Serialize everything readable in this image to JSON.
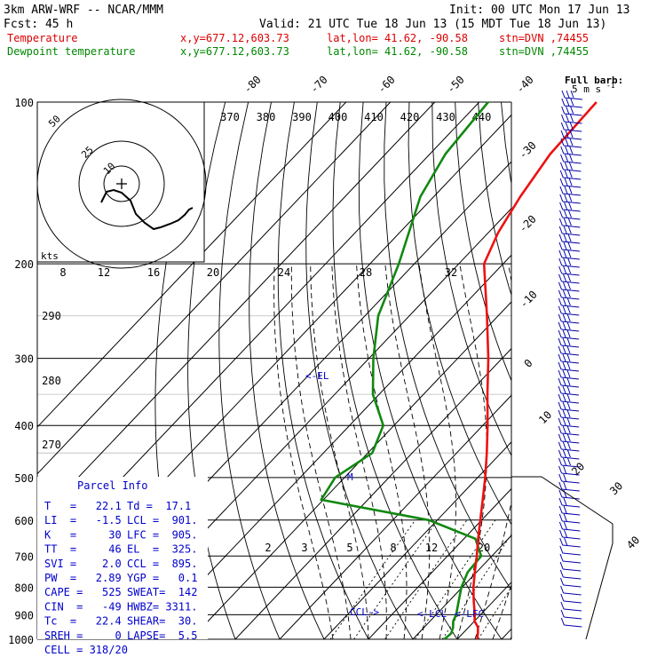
{
  "header": {
    "model": "3km ARW-WRF -- NCAR/MMM",
    "init": "Init: 00 UTC Mon 17 Jun 13",
    "fcst": "Fcst:   45 h",
    "valid": "Valid: 21 UTC Tue 18 Jun 13 (15 MDT Tue 18 Jun 13)",
    "temp_label": "Temperature",
    "dew_label": "Dewpoint temperature",
    "xy": "x,y=677.12,603.73",
    "latlon": "lat,lon= 41.62, -90.58",
    "stn": "stn=DVN ,74455"
  },
  "colors": {
    "temperature": "#ee1111",
    "dewpoint": "#118811",
    "barbs": "#0000aa",
    "header_temp": "#dd0000",
    "header_dew": "#008800"
  },
  "barb_legend": [
    "Full barb:",
    "5 m s",
    "-1"
  ],
  "hodograph": {
    "ring_labels": [
      "50",
      "25",
      "10"
    ],
    "units": "kts",
    "trace_description_note": ""
  },
  "parcel": {
    "title": "Parcel Info",
    "rows": [
      [
        "T   =   22.1",
        "Td =  17.1"
      ],
      [
        "LI  =   -1.5",
        "LCL =  901."
      ],
      [
        "K   =     30",
        "LFC =  905."
      ],
      [
        "TT  =     46",
        "EL  =  325."
      ],
      [
        "SVI =    2.0",
        "CCL =  895."
      ],
      [
        "PW  =   2.89",
        "YGP =   0.1"
      ],
      [
        "CAPE =   525",
        "SWEAT=  142"
      ],
      [
        "CIN  =   -49",
        "HWBZ= 3311."
      ],
      [
        "Tc  =   22.4",
        "SHEAR=  30."
      ],
      [
        "SREH =     0",
        "LAPSE=  5.5"
      ],
      [
        "CELL = 318/20",
        ""
      ]
    ]
  },
  "annotations": {
    "el": "<-EL",
    "m": "M",
    "ccl": "CCL->",
    "lcl": "<-LCL",
    "lfc": "<-LFC"
  },
  "chart_data": {
    "type": "line",
    "title": "",
    "xlabel": "",
    "ylabel": "",
    "pressure_levels": [
      100,
      200,
      300,
      400,
      500,
      600,
      700,
      800,
      900,
      1000
    ],
    "isotherm_labels_top": [
      "-80",
      "-70",
      "-60",
      "-50",
      "-40"
    ],
    "isotherm_labels_right": [
      "-30",
      "-20",
      "-10",
      "0",
      "10",
      "20",
      "30",
      "40"
    ],
    "theta_labels": [
      "370",
      "380",
      "390",
      "400",
      "410",
      "420",
      "430",
      "440"
    ],
    "theta_e_labels_left": [
      "290",
      "280",
      "270"
    ],
    "mixing_ratio_labels_upper": [
      "8",
      "12",
      "16",
      "20",
      "24",
      "28",
      "32"
    ],
    "mixing_ratio_labels_lower": [
      "2",
      "3",
      "5",
      "8",
      "12",
      "20"
    ],
    "series": [
      {
        "name": "Temperature",
        "points": [
          [
            1000,
            24.5
          ],
          [
            975,
            23.4
          ],
          [
            950,
            22.1
          ],
          [
            925,
            20.0
          ],
          [
            900,
            18.7
          ],
          [
            850,
            15.6
          ],
          [
            800,
            12.5
          ],
          [
            750,
            9.6
          ],
          [
            700,
            6.6
          ],
          [
            650,
            3.2
          ],
          [
            600,
            -0.3
          ],
          [
            550,
            -4.1
          ],
          [
            500,
            -8.3
          ],
          [
            450,
            -13.2
          ],
          [
            400,
            -18.9
          ],
          [
            350,
            -25.6
          ],
          [
            300,
            -33.1
          ],
          [
            250,
            -42.5
          ],
          [
            200,
            -54.3
          ],
          [
            175,
            -57.8
          ],
          [
            150,
            -60.5
          ],
          [
            125,
            -62.9
          ],
          [
            100,
            -63.6
          ]
        ]
      },
      {
        "name": "Dewpoint temperature",
        "points": [
          [
            1000,
            17.1
          ],
          [
            975,
            17.4
          ],
          [
            950,
            16.5
          ],
          [
            925,
            15.2
          ],
          [
            900,
            14.5
          ],
          [
            850,
            12.2
          ],
          [
            800,
            9.8
          ],
          [
            750,
            8.0
          ],
          [
            700,
            7.6
          ],
          [
            650,
            2.6
          ],
          [
            600,
            -11.9
          ],
          [
            550,
            -40.5
          ],
          [
            500,
            -42.1
          ],
          [
            450,
            -39.0
          ],
          [
            400,
            -42.4
          ],
          [
            350,
            -51.4
          ],
          [
            300,
            -59.0
          ],
          [
            250,
            -67.0
          ],
          [
            200,
            -73.5
          ],
          [
            150,
            -83.0
          ],
          [
            125,
            -86.5
          ],
          [
            100,
            -88.0
          ]
        ]
      }
    ],
    "wind_barbs_note": "wind profile along right edge"
  }
}
